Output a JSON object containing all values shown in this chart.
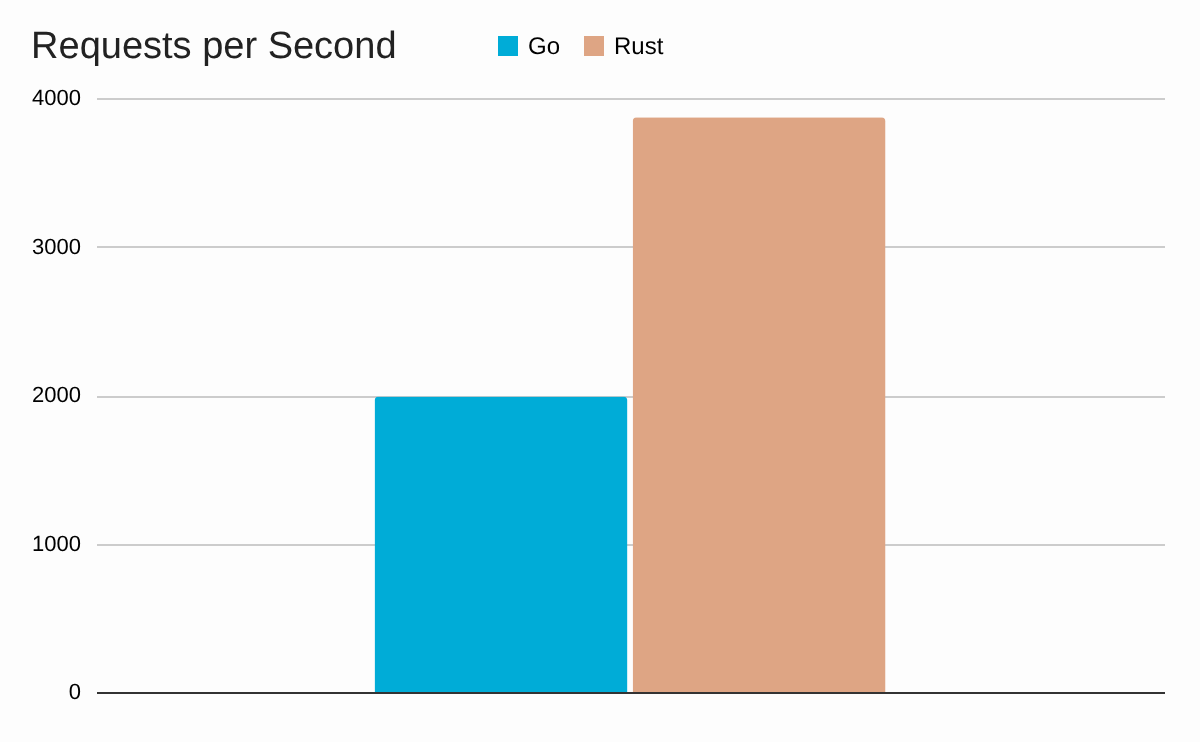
{
  "chart_data": {
    "type": "bar",
    "title": "Requests per Second",
    "categories": [
      null
    ],
    "series": [
      {
        "name": "Go",
        "color": "#00acd7",
        "values": [
          1990
        ]
      },
      {
        "name": "Rust",
        "color": "#dea584",
        "values": [
          3870
        ]
      }
    ],
    "ylim": [
      0,
      4000
    ],
    "yticks": [
      0,
      1000,
      2000,
      3000,
      4000
    ],
    "grid": "y",
    "legend": "top"
  }
}
